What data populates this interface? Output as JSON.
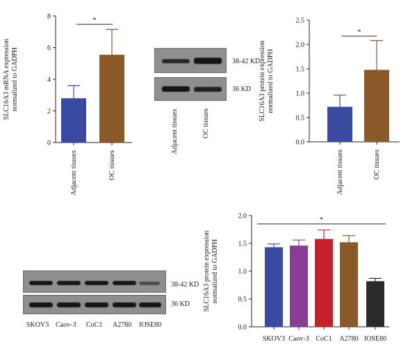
{
  "chart_data": [
    {
      "id": "panelA",
      "type": "bar",
      "categories": [
        "Adjacent tissues",
        "OC tissues"
      ],
      "values": [
        2.8,
        5.55
      ],
      "errors": [
        0.8,
        1.6
      ],
      "colors": [
        "#3a4aa0",
        "#8a5a2b"
      ],
      "ylabel_lines": [
        "SLC16A3 mRNA expression",
        "normalized to GADPH"
      ],
      "ylim": [
        0,
        8
      ],
      "yticks": [
        0,
        2,
        4,
        6,
        8
      ],
      "significance": "*"
    },
    {
      "id": "panelB",
      "type": "bar",
      "categories": [
        "Adjacent tissues",
        "OC tissues"
      ],
      "values": [
        0.72,
        1.48
      ],
      "errors": [
        0.24,
        0.6
      ],
      "colors": [
        "#3a4aa0",
        "#8a5a2b"
      ],
      "ylabel_lines": [
        "SLC16A3 protein expression",
        "normalized to GADPH"
      ],
      "ylim": [
        0,
        2.5
      ],
      "yticks": [
        "0.0",
        "0.5",
        "1.0",
        "1.5",
        "2.0",
        "2.5"
      ],
      "significance": "*"
    },
    {
      "id": "panelD",
      "type": "bar",
      "categories": [
        "SKOV3",
        "Caov-3",
        "CoC1",
        "A2780",
        "IOSE80"
      ],
      "values": [
        1.43,
        1.46,
        1.58,
        1.52,
        0.82
      ],
      "errors": [
        0.06,
        0.1,
        0.16,
        0.12,
        0.05
      ],
      "colors": [
        "#3a4aa0",
        "#8a3e93",
        "#c4212b",
        "#8a5a2b",
        "#2b2b2b"
      ],
      "ylabel_lines": [
        "SLC16A3 protein expression",
        "normalized to GADPH"
      ],
      "ylim": [
        0,
        2.0
      ],
      "yticks": [
        "0.0",
        "0.5",
        "1.0",
        "1.5",
        "2.0"
      ],
      "significance": "*"
    }
  ],
  "blots": {
    "tissue": {
      "band_labels": [
        "38-42 KD",
        "36 KD"
      ],
      "lanes": [
        "Adjacent tissues",
        "OC tissues"
      ]
    },
    "cells": {
      "band_labels": [
        "38-42 KD",
        "36 KD"
      ],
      "lanes": [
        "SKOV3",
        "Caov-3",
        "CoC1",
        "A2780",
        "IOSE80"
      ]
    }
  }
}
